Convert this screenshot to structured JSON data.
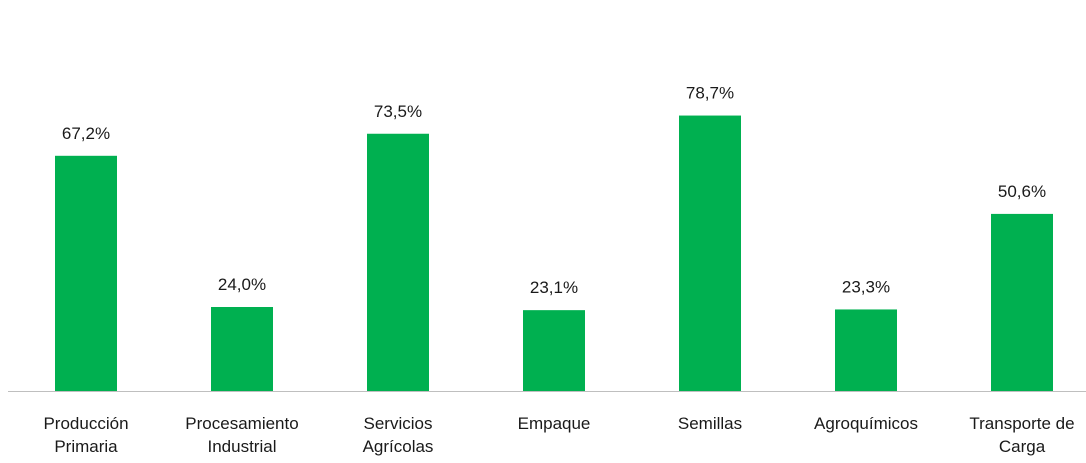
{
  "chart_data": {
    "type": "bar",
    "categories": [
      [
        "Producción",
        "Primaria"
      ],
      [
        "Procesamiento",
        "Industrial"
      ],
      [
        "Servicios",
        "Agrícolas"
      ],
      [
        "Empaque"
      ],
      [
        "Semillas"
      ],
      [
        "Agroquímicos"
      ],
      [
        "Transporte de",
        "Carga"
      ]
    ],
    "values": [
      67.2,
      24.0,
      73.5,
      23.1,
      78.7,
      23.3,
      50.6
    ],
    "data_labels": [
      "67,2%",
      "24,0%",
      "73,5%",
      "23,1%",
      "78,7%",
      "23,3%",
      "50,6%"
    ],
    "ylim": [
      0,
      100
    ],
    "grid": false,
    "legend": "none",
    "bar_color": "#00b050",
    "axis_color": "#bfbfbf"
  }
}
